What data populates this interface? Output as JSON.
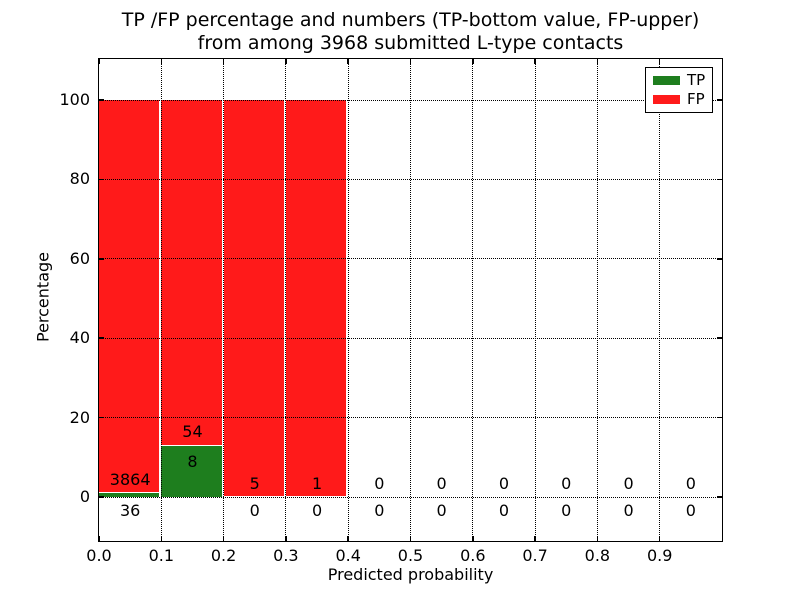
{
  "header": {
    "title_line1": "TP /FP percentage and numbers (TP-bottom value, FP-upper)",
    "title_line2": "from among 3968 submitted L-type contacts"
  },
  "axes": {
    "xlabel": "Predicted probability",
    "ylabel": "Percentage"
  },
  "legend": {
    "position": "upper right",
    "items": [
      {
        "label": "TP",
        "color": "#1e7e1e"
      },
      {
        "label": "FP",
        "color": "#ff1a1a"
      }
    ]
  },
  "chart_data": {
    "type": "bar",
    "subtype": "stacked-percentage-histogram",
    "title": "TP /FP percentage and numbers (TP-bottom value, FP-upper)\nfrom among 3968 submitted L-type contacts",
    "xlabel": "Predicted probability",
    "ylabel": "Percentage",
    "total_submitted_contacts": 3968,
    "bin_edges": [
      0.0,
      0.1,
      0.2,
      0.3,
      0.4,
      0.5,
      0.6,
      0.7,
      0.8,
      0.9,
      1.0
    ],
    "categories": [
      "0.0-0.1",
      "0.1-0.2",
      "0.2-0.3",
      "0.3-0.4",
      "0.4-0.5",
      "0.5-0.6",
      "0.6-0.7",
      "0.7-0.8",
      "0.8-0.9",
      "0.9-1.0"
    ],
    "series": [
      {
        "name": "TP",
        "color": "#1e7e1e",
        "counts": [
          36,
          8,
          0,
          0,
          0,
          0,
          0,
          0,
          0,
          0
        ],
        "percent": [
          0.92,
          12.9,
          0,
          0,
          0,
          0,
          0,
          0,
          0,
          0
        ]
      },
      {
        "name": "FP",
        "color": "#ff1a1a",
        "counts": [
          3864,
          54,
          5,
          1,
          0,
          0,
          0,
          0,
          0,
          0
        ],
        "percent": [
          99.08,
          87.1,
          100,
          100,
          0,
          0,
          0,
          0,
          0,
          0
        ]
      }
    ],
    "annotation_rule": "TP count printed below stack bottom, FP count printed above TP segment top",
    "xtick_labels": [
      "0.0",
      "0.1",
      "0.2",
      "0.3",
      "0.4",
      "0.5",
      "0.6",
      "0.7",
      "0.8",
      "0.9"
    ],
    "ytick_values": [
      0,
      20,
      40,
      60,
      80,
      100
    ],
    "xlim": [
      0.0,
      1.0
    ],
    "ylim": [
      -11,
      110.5
    ],
    "grid": "dotted",
    "legend_position": "upper right"
  }
}
